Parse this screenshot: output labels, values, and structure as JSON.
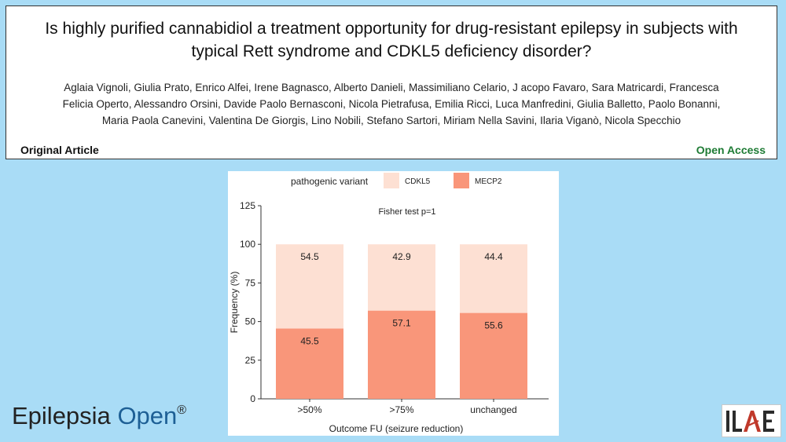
{
  "header": {
    "title": "Is highly purified cannabidiol a treatment opportunity for drug-resistant epilepsy in subjects with typical Rett syndrome and CDKL5 deficiency disorder?",
    "authors": "Aglaia Vignoli, Giulia Prato, Enrico Alfei, Irene Bagnasco, Alberto Danieli, Massimiliano Celario, J acopo Favaro, Sara Matricardi, Francesca Felicia Operto, Alessandro Orsini, Davide Paolo Bernasconi, Nicola Pietrafusa, Emilia Ricci, Luca Manfredini, Giulia Balletto, Paolo Bonanni, Maria Paola Canevini, Valentina De Giorgis, Lino Nobili, Stefano Sartori, Miriam Nella Savini, Ilaria Viganò, Nicola Specchio",
    "article_type": "Original Article",
    "access_label": "Open Access"
  },
  "chart_data": {
    "type": "bar",
    "stacked": true,
    "legend_title": "pathogenic variant",
    "annotation": "Fisher test p=1",
    "categories": [
      ">50%",
      ">75%",
      "unchanged"
    ],
    "series": [
      {
        "name": "MECP2",
        "values": [
          45.5,
          57.1,
          55.6
        ],
        "color": "#f9967a"
      },
      {
        "name": "CDKL5",
        "values": [
          54.5,
          42.9,
          44.4
        ],
        "color": "#fde0d3"
      }
    ],
    "legend_order": [
      "CDKL5",
      "MECP2"
    ],
    "xlabel": "Outcome FU   (seizure reduction)",
    "ylabel": "Frequency (%)",
    "ylim": [
      0,
      125
    ],
    "yticks": [
      0,
      25,
      50,
      75,
      100,
      125
    ]
  },
  "footer": {
    "journal_name_part1": "Epilepsia",
    "journal_name_part2": "Open",
    "journal_mark": "®",
    "org_logo_text": "ILAE"
  }
}
